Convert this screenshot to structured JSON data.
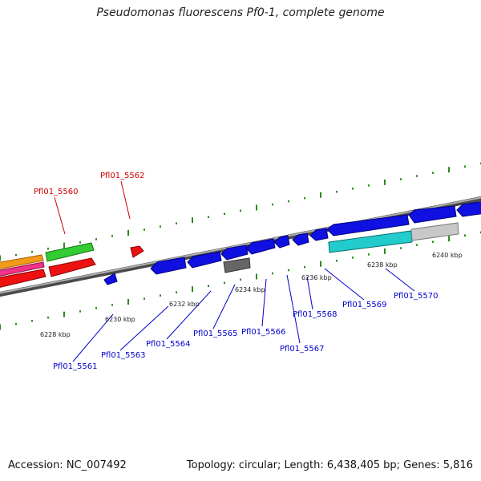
{
  "title": "Pseudomonas fluorescens Pf0-1, complete genome",
  "footer": {
    "accession": "Accession: NC_007492",
    "stats": "Topology: circular; Length: 6,438,405 bp; Genes: 5,816"
  },
  "colors": {
    "backbone": "#8a8a8a",
    "tick": "#2a8a1a",
    "forward_label": "#cc0000",
    "reverse_label": "#0000cc",
    "gene_blue": "#1010e0",
    "gene_red": "#ee1111",
    "gene_green": "#33cc33",
    "gene_orange": "#f29a1a",
    "gene_pink": "#ee3388",
    "gene_cyan": "#22cccc",
    "gene_gray": "#666666",
    "gene_lightgray": "#c8c8c8"
  },
  "scale_labels": [
    "6228 kbp",
    "6230 kbp",
    "6232 kbp",
    "6234 kbp",
    "6236 kbp",
    "6238 kbp",
    "6240 kbp"
  ],
  "forward_labels": [
    "Pfl01_5560",
    "Pfl01_5562"
  ],
  "reverse_labels": [
    "Pfl01_5561",
    "Pfl01_5563",
    "Pfl01_5564",
    "Pfl01_5565",
    "Pfl01_5566",
    "Pfl01_5567",
    "Pfl01_5568",
    "Pfl01_5569",
    "Pfl01_5570"
  ]
}
